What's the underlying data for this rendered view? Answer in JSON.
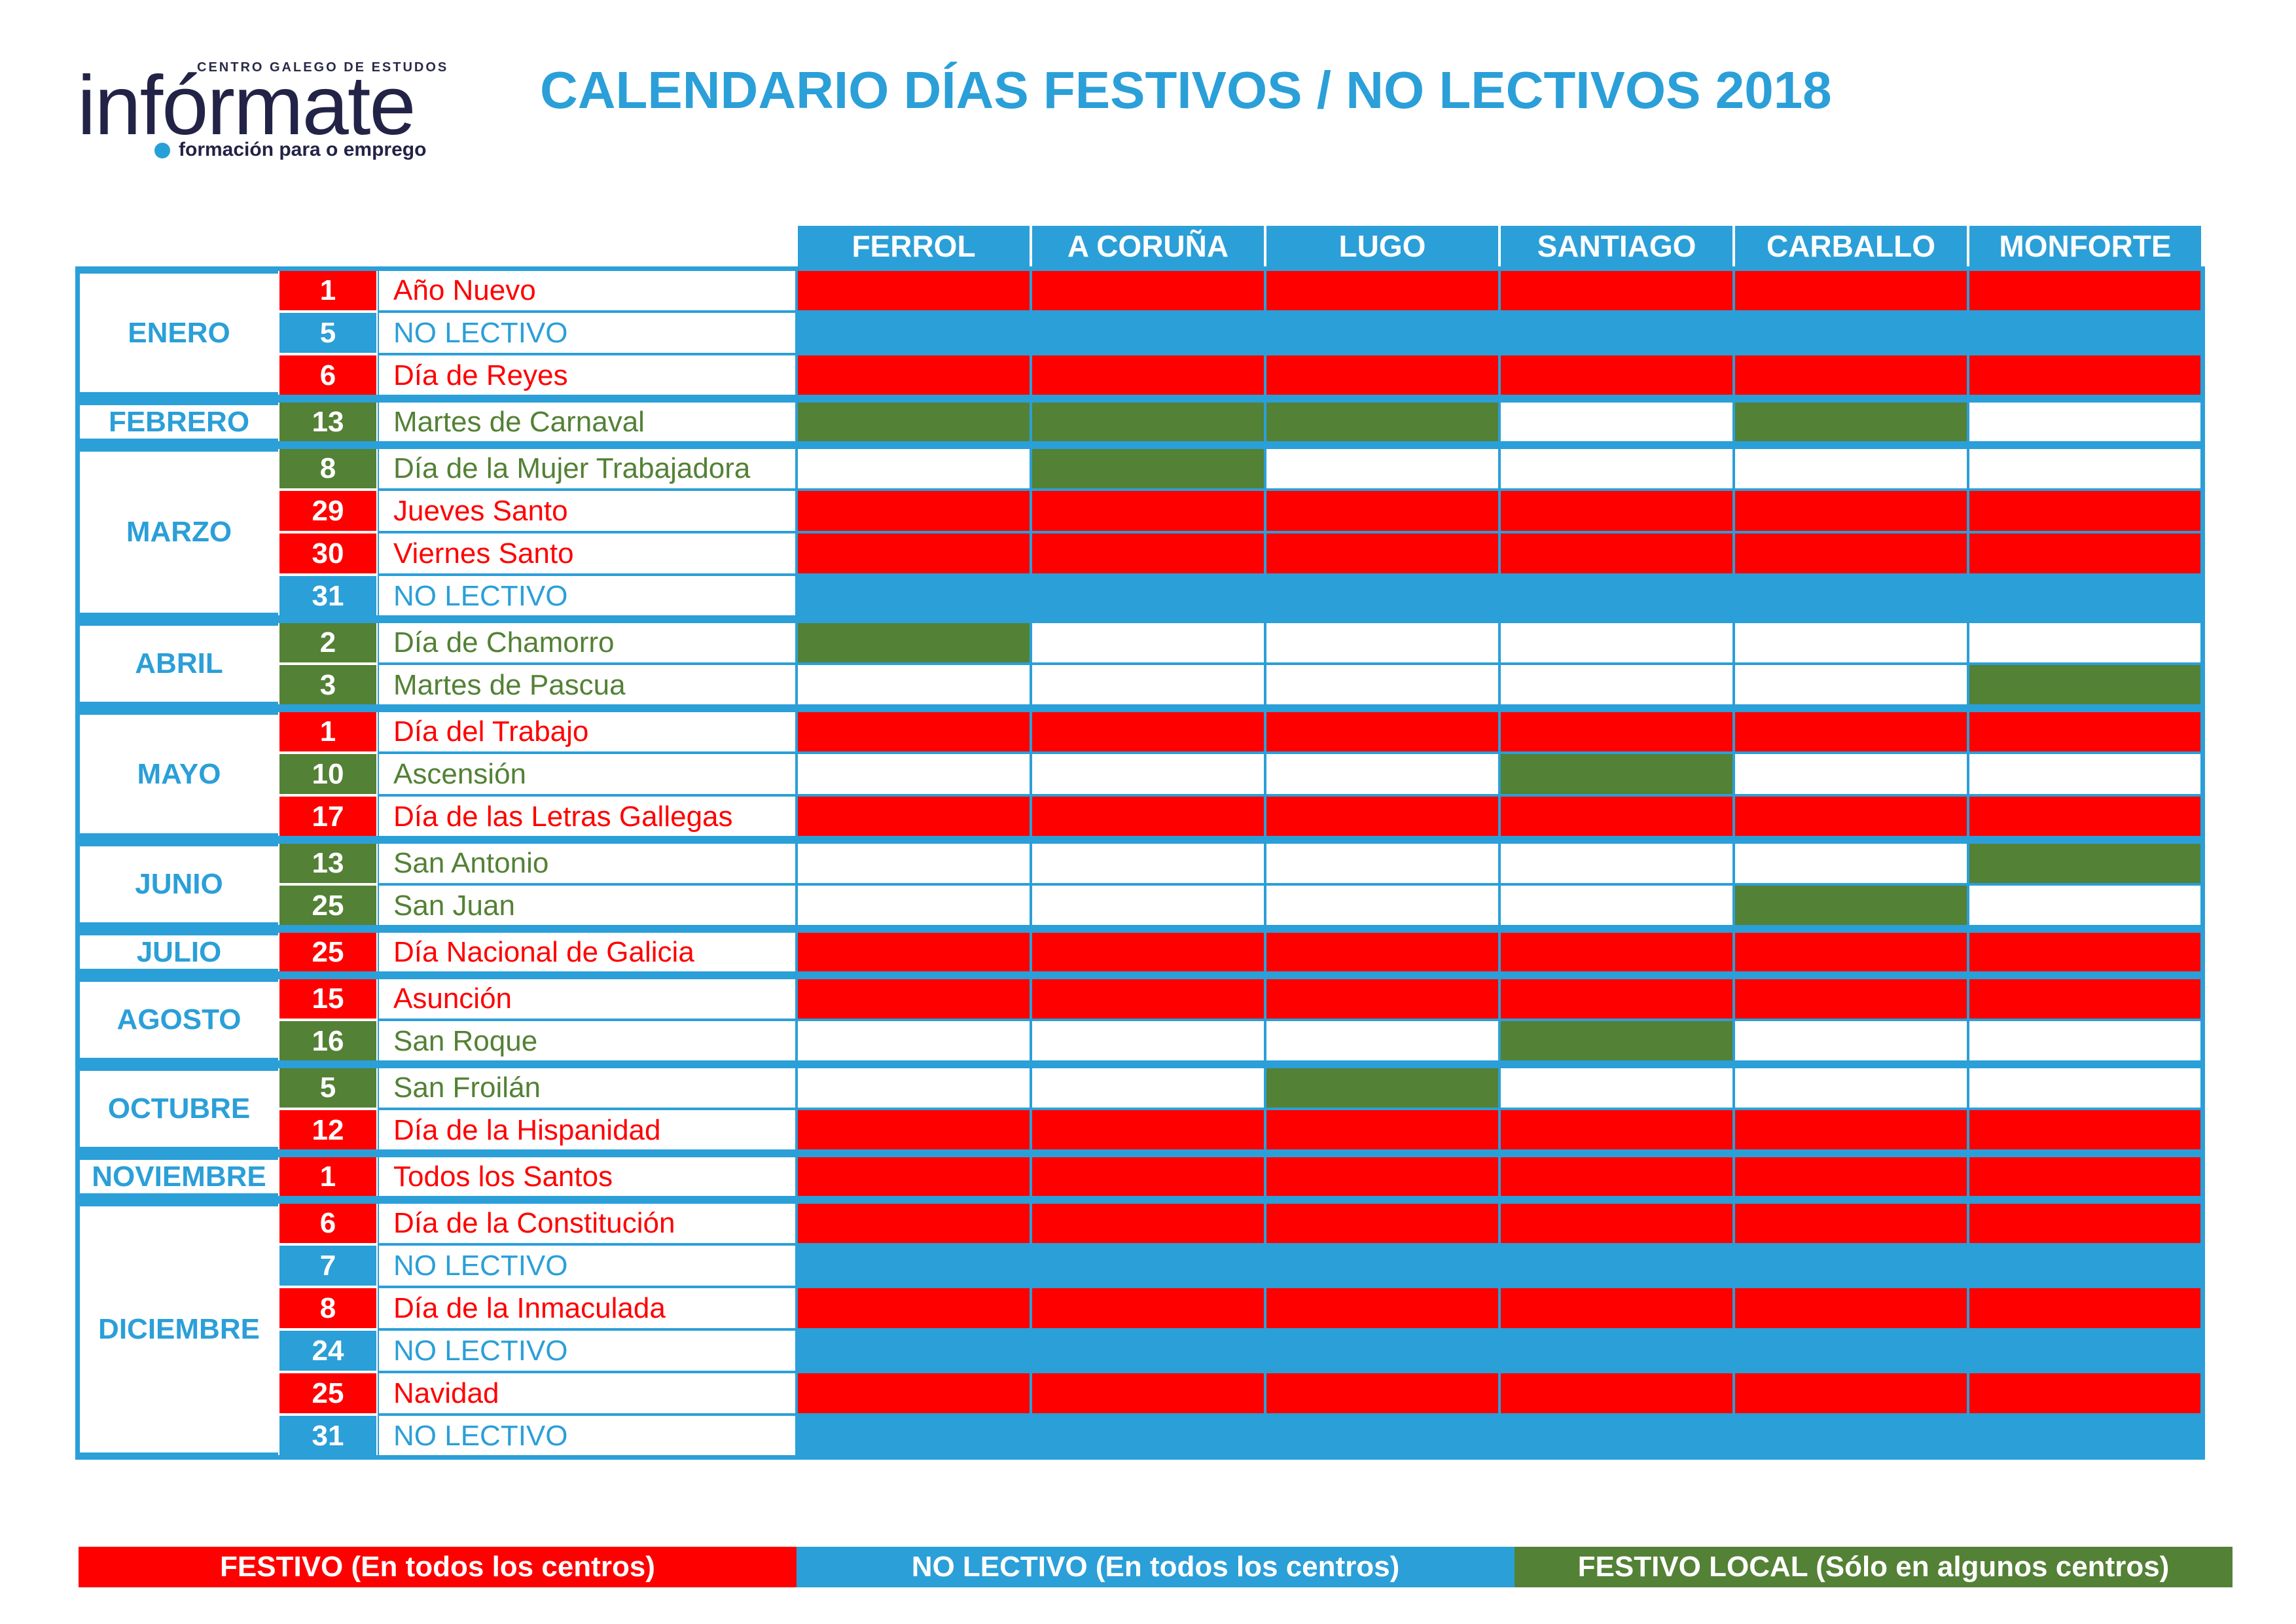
{
  "logo": {
    "tagline_top": "CENTRO GALEGO DE ESTUDOS",
    "word": "infórmate",
    "tagline_bottom": "formación para o emprego"
  },
  "title": "CALENDARIO DÍAS FESTIVOS / NO LECTIVOS 2018",
  "colors": {
    "festivo": "#ff0000",
    "nolectivo": "#2b9fd8",
    "local": "#538135",
    "none": "#ffffff"
  },
  "cities": [
    "FERROL",
    "A CORUÑA",
    "LUGO",
    "SANTIAGO",
    "CARBALLO",
    "MONFORTE"
  ],
  "months": [
    {
      "name": "ENERO",
      "rows": [
        {
          "day": "1",
          "name": "Año Nuevo",
          "type": "festivo",
          "cells": [
            "festivo",
            "festivo",
            "festivo",
            "festivo",
            "festivo",
            "festivo"
          ]
        },
        {
          "day": "5",
          "name": "NO LECTIVO",
          "type": "nolectivo",
          "cells": [
            "nolectivo",
            "nolectivo",
            "nolectivo",
            "nolectivo",
            "nolectivo",
            "nolectivo"
          ]
        },
        {
          "day": "6",
          "name": "Día de Reyes",
          "type": "festivo",
          "cells": [
            "festivo",
            "festivo",
            "festivo",
            "festivo",
            "festivo",
            "festivo"
          ]
        }
      ]
    },
    {
      "name": "FEBRERO",
      "rows": [
        {
          "day": "13",
          "name": "Martes de Carnaval",
          "type": "local",
          "cells": [
            "local",
            "local",
            "local",
            "none",
            "local",
            "none"
          ]
        }
      ]
    },
    {
      "name": "MARZO",
      "rows": [
        {
          "day": "8",
          "name": "Día de la Mujer Trabajadora",
          "type": "local",
          "cells": [
            "none",
            "local",
            "none",
            "none",
            "none",
            "none"
          ]
        },
        {
          "day": "29",
          "name": "Jueves Santo",
          "type": "festivo",
          "cells": [
            "festivo",
            "festivo",
            "festivo",
            "festivo",
            "festivo",
            "festivo"
          ]
        },
        {
          "day": "30",
          "name": "Viernes Santo",
          "type": "festivo",
          "cells": [
            "festivo",
            "festivo",
            "festivo",
            "festivo",
            "festivo",
            "festivo"
          ]
        },
        {
          "day": "31",
          "name": "NO LECTIVO",
          "type": "nolectivo",
          "cells": [
            "nolectivo",
            "nolectivo",
            "nolectivo",
            "nolectivo",
            "nolectivo",
            "nolectivo"
          ]
        }
      ]
    },
    {
      "name": "ABRIL",
      "rows": [
        {
          "day": "2",
          "name": "Día de Chamorro",
          "type": "local",
          "cells": [
            "local",
            "none",
            "none",
            "none",
            "none",
            "none"
          ]
        },
        {
          "day": "3",
          "name": "Martes de Pascua",
          "type": "local",
          "cells": [
            "none",
            "none",
            "none",
            "none",
            "none",
            "local"
          ]
        }
      ]
    },
    {
      "name": "MAYO",
      "rows": [
        {
          "day": "1",
          "name": "Día del Trabajo",
          "type": "festivo",
          "cells": [
            "festivo",
            "festivo",
            "festivo",
            "festivo",
            "festivo",
            "festivo"
          ]
        },
        {
          "day": "10",
          "name": "Ascensión",
          "type": "local",
          "cells": [
            "none",
            "none",
            "none",
            "local",
            "none",
            "none"
          ]
        },
        {
          "day": "17",
          "name": "Día de las Letras Gallegas",
          "type": "festivo",
          "cells": [
            "festivo",
            "festivo",
            "festivo",
            "festivo",
            "festivo",
            "festivo"
          ]
        }
      ]
    },
    {
      "name": "JUNIO",
      "rows": [
        {
          "day": "13",
          "name": "San Antonio",
          "type": "local",
          "cells": [
            "none",
            "none",
            "none",
            "none",
            "none",
            "local"
          ]
        },
        {
          "day": "25",
          "name": "San Juan",
          "type": "local",
          "cells": [
            "none",
            "none",
            "none",
            "none",
            "local",
            "none"
          ]
        }
      ]
    },
    {
      "name": "JULIO",
      "rows": [
        {
          "day": "25",
          "name": "Día Nacional de Galicia",
          "type": "festivo",
          "cells": [
            "festivo",
            "festivo",
            "festivo",
            "festivo",
            "festivo",
            "festivo"
          ]
        }
      ]
    },
    {
      "name": "AGOSTO",
      "rows": [
        {
          "day": "15",
          "name": "Asunción",
          "type": "festivo",
          "cells": [
            "festivo",
            "festivo",
            "festivo",
            "festivo",
            "festivo",
            "festivo"
          ]
        },
        {
          "day": "16",
          "name": "San Roque",
          "type": "local",
          "cells": [
            "none",
            "none",
            "none",
            "local",
            "none",
            "none"
          ]
        }
      ]
    },
    {
      "name": "OCTUBRE",
      "rows": [
        {
          "day": "5",
          "name": "San Froilán",
          "type": "local",
          "cells": [
            "none",
            "none",
            "local",
            "none",
            "none",
            "none"
          ]
        },
        {
          "day": "12",
          "name": "Día de la Hispanidad",
          "type": "festivo",
          "cells": [
            "festivo",
            "festivo",
            "festivo",
            "festivo",
            "festivo",
            "festivo"
          ]
        }
      ]
    },
    {
      "name": "NOVIEMBRE",
      "rows": [
        {
          "day": "1",
          "name": "Todos los Santos",
          "type": "festivo",
          "cells": [
            "festivo",
            "festivo",
            "festivo",
            "festivo",
            "festivo",
            "festivo"
          ]
        }
      ]
    },
    {
      "name": "DICIEMBRE",
      "rows": [
        {
          "day": "6",
          "name": "Día de la Constitución",
          "type": "festivo",
          "cells": [
            "festivo",
            "festivo",
            "festivo",
            "festivo",
            "festivo",
            "festivo"
          ]
        },
        {
          "day": "7",
          "name": "NO LECTIVO",
          "type": "nolectivo",
          "cells": [
            "nolectivo",
            "nolectivo",
            "nolectivo",
            "nolectivo",
            "nolectivo",
            "nolectivo"
          ]
        },
        {
          "day": "8",
          "name": "Día de la Inmaculada",
          "type": "festivo",
          "cells": [
            "festivo",
            "festivo",
            "festivo",
            "festivo",
            "festivo",
            "festivo"
          ]
        },
        {
          "day": "24",
          "name": "NO LECTIVO",
          "type": "nolectivo",
          "cells": [
            "nolectivo",
            "nolectivo",
            "nolectivo",
            "nolectivo",
            "nolectivo",
            "nolectivo"
          ]
        },
        {
          "day": "25",
          "name": "Navidad",
          "type": "festivo",
          "cells": [
            "festivo",
            "festivo",
            "festivo",
            "festivo",
            "festivo",
            "festivo"
          ]
        },
        {
          "day": "31",
          "name": "NO LECTIVO",
          "type": "nolectivo",
          "cells": [
            "nolectivo",
            "nolectivo",
            "nolectivo",
            "nolectivo",
            "nolectivo",
            "nolectivo"
          ]
        }
      ]
    }
  ],
  "legend": [
    {
      "label": "FESTIVO (En todos los centros)",
      "type": "festivo"
    },
    {
      "label": "NO LECTIVO (En todos los centros)",
      "type": "nolectivo"
    },
    {
      "label": "FESTIVO LOCAL (Sólo en algunos centros)",
      "type": "local"
    }
  ]
}
